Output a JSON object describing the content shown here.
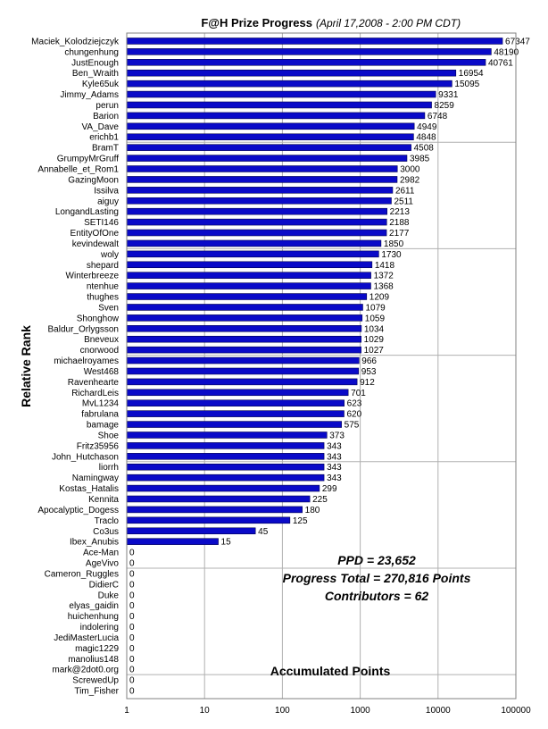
{
  "chart_data": {
    "type": "bar",
    "orientation": "horizontal",
    "title": "F@H Prize Progress",
    "subtitle": "(April 17,2008 -  2:00 PM CDT)",
    "xlabel": "Accumulated Points",
    "ylabel": "Relative Rank",
    "xscale": "log",
    "xlim": [
      1,
      100000
    ],
    "xticks": [
      "1",
      "10",
      "100",
      "1000",
      "10000",
      "100000"
    ],
    "grid": "vertical",
    "legend": "none",
    "bar_color": "#0a0ac8",
    "categories": [
      "Maciek_Kolodziejczyk",
      "chungenhung",
      "JustEnough",
      "Ben_Wraith",
      "Kyle65uk",
      "Jimmy_Adams",
      "perun",
      "Barion",
      "VA_Dave",
      "erichb1",
      "BramT",
      "GrumpyMrGruff",
      "Annabelle_et_Rom1",
      "GazingMoon",
      "Issilva",
      "aiguy",
      "LongandLasting",
      "SETI146",
      "EntityOfOne",
      "kevindewalt",
      "woly",
      "shepard",
      "Winterbreeze",
      "ntenhue",
      "thughes",
      "Sven",
      "Shonghow",
      "Baldur_Orlygsson",
      "Bneveux",
      "cnorwood",
      "michaelroyames",
      "West468",
      "Ravenhearte",
      "RichardLeis",
      "MvL1234",
      "fabrulana",
      "bamage",
      "Shoe",
      "Fritz35956",
      "John_Hutchason",
      "liorrh",
      "Namingway",
      "Kostas_Hatalis",
      "Kennita",
      "Apocalyptic_Dogess",
      "Traclo",
      "Co3us",
      "Ibex_Anubis",
      "Ace-Man",
      "AgeVivo",
      "Cameron_Ruggles",
      "DidierC",
      "Duke",
      "elyas_gaidin",
      "huichenhung",
      "indolering",
      "JediMasterLucia",
      "magic1229",
      "manolius148",
      "mark@2dot0.org",
      "ScrewedUp",
      "Tim_Fisher"
    ],
    "values": [
      67347,
      48190,
      40761,
      16954,
      15095,
      9331,
      8259,
      6748,
      4949,
      4848,
      4508,
      3985,
      3000,
      2982,
      2611,
      2511,
      2213,
      2188,
      2177,
      1850,
      1730,
      1418,
      1372,
      1368,
      1209,
      1079,
      1059,
      1034,
      1029,
      1027,
      966,
      953,
      912,
      701,
      623,
      620,
      575,
      373,
      343,
      343,
      343,
      343,
      299,
      225,
      180,
      125,
      45,
      15,
      0,
      0,
      0,
      0,
      0,
      0,
      0,
      0,
      0,
      0,
      0,
      0,
      0,
      0
    ],
    "value_labels": [
      "67347",
      "48190",
      "40761",
      "16954",
      "15095",
      "9331",
      "8259",
      "6748",
      "4949",
      "4848",
      "4508",
      "3985",
      "3000",
      "2982",
      "2611",
      "2511",
      "2213",
      "2188",
      "2177",
      "1850",
      "1730",
      "1418",
      "1372",
      "1368",
      "1209",
      "1079",
      "1059",
      "1034",
      "1029",
      "1027",
      "966",
      "953",
      "912",
      "701",
      "623",
      "620",
      "575",
      "373",
      "343",
      "343",
      "343",
      "343",
      "299",
      "225",
      "180",
      "125",
      "45",
      "15",
      "0",
      "0",
      "0",
      "0",
      "0",
      "0",
      "0",
      "0",
      "0",
      "0",
      "0",
      "0",
      "0",
      "0"
    ],
    "annotations": [
      "PPD = 23,652",
      "Progress Total = 270,816 Points",
      "Contributors = 62"
    ]
  }
}
